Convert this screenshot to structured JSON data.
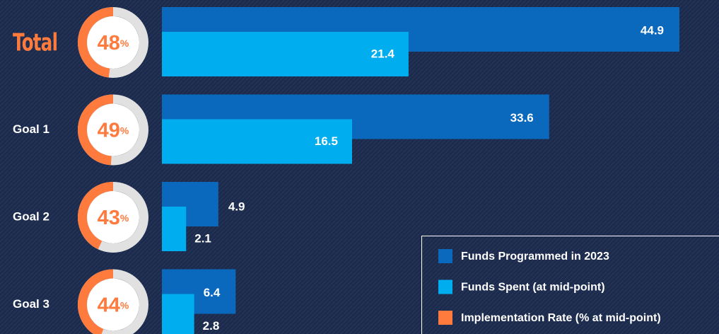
{
  "chart_data": {
    "type": "bar-donut",
    "categories": [
      "Total",
      "Goal 1",
      "Goal 2",
      "Goal 3"
    ],
    "series": [
      {
        "name": "Funds Programmed in 2023",
        "color": "#0a69bd",
        "values": [
          44.9,
          33.6,
          4.9,
          6.4
        ]
      },
      {
        "name": "Funds Spent (at mid-point)",
        "color": "#00aeef",
        "values": [
          21.4,
          16.5,
          2.1,
          2.8
        ]
      },
      {
        "name": "Implementation Rate (% at mid-point)",
        "color": "#ff7a3d",
        "values": [
          48,
          49,
          43,
          44
        ],
        "unit": "%"
      }
    ]
  }
}
